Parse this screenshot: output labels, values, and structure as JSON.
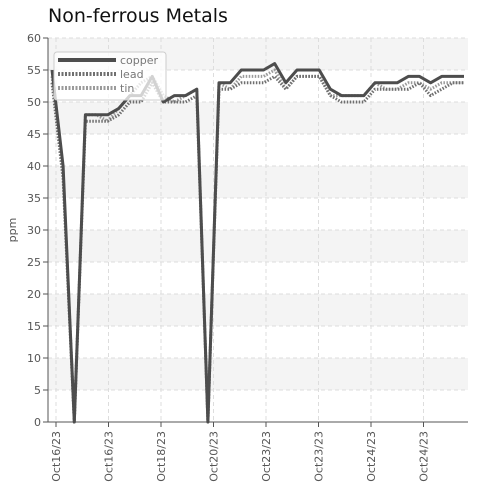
{
  "chart_data": {
    "type": "line",
    "title": "Non-ferrous Metals",
    "xlabel": "",
    "ylabel": "ppm",
    "ylim": [
      0,
      60
    ],
    "yticks": [
      0,
      5,
      10,
      15,
      20,
      25,
      30,
      35,
      40,
      45,
      50,
      55,
      60
    ],
    "x_tick_labels": [
      "Oct16/23",
      "Oct16/23",
      "Oct18/23",
      "Oct20/23",
      "Oct23/23",
      "Oct23/23",
      "Oct24/23",
      "Oct24/23"
    ],
    "grid": true,
    "legend_position": "top-left",
    "series": [
      {
        "name": "copper",
        "color": "#4d4d4d",
        "style": "solid",
        "values": [
          55,
          40,
          0,
          48,
          48,
          48,
          49,
          51,
          51,
          54,
          50,
          51,
          51,
          52,
          0,
          53,
          53,
          55,
          55,
          55,
          56,
          53,
          55,
          55,
          55,
          52,
          51,
          51,
          51,
          53,
          53,
          53,
          54,
          54,
          53,
          54,
          54,
          54
        ]
      },
      {
        "name": "lead",
        "color": "#6f6f6f",
        "style": "dotted",
        "values": [
          53,
          38,
          0,
          47,
          47,
          47,
          48,
          50,
          50,
          53,
          50,
          50,
          50,
          51,
          0,
          52,
          52,
          53,
          53,
          53,
          54,
          52,
          54,
          54,
          54,
          51,
          50,
          50,
          50,
          52,
          52,
          52,
          52,
          53,
          51,
          52,
          53,
          53
        ]
      },
      {
        "name": "tin",
        "color": "#9a9a9a",
        "style": "dotted",
        "values": [
          54,
          39,
          0,
          48,
          48,
          47,
          49,
          51,
          53,
          54,
          51,
          50,
          51,
          52,
          0,
          53,
          52,
          54,
          54,
          54,
          55,
          52,
          54,
          54,
          54,
          51,
          51,
          51,
          51,
          53,
          52,
          52,
          53,
          53,
          52,
          53,
          53,
          53
        ]
      }
    ]
  }
}
